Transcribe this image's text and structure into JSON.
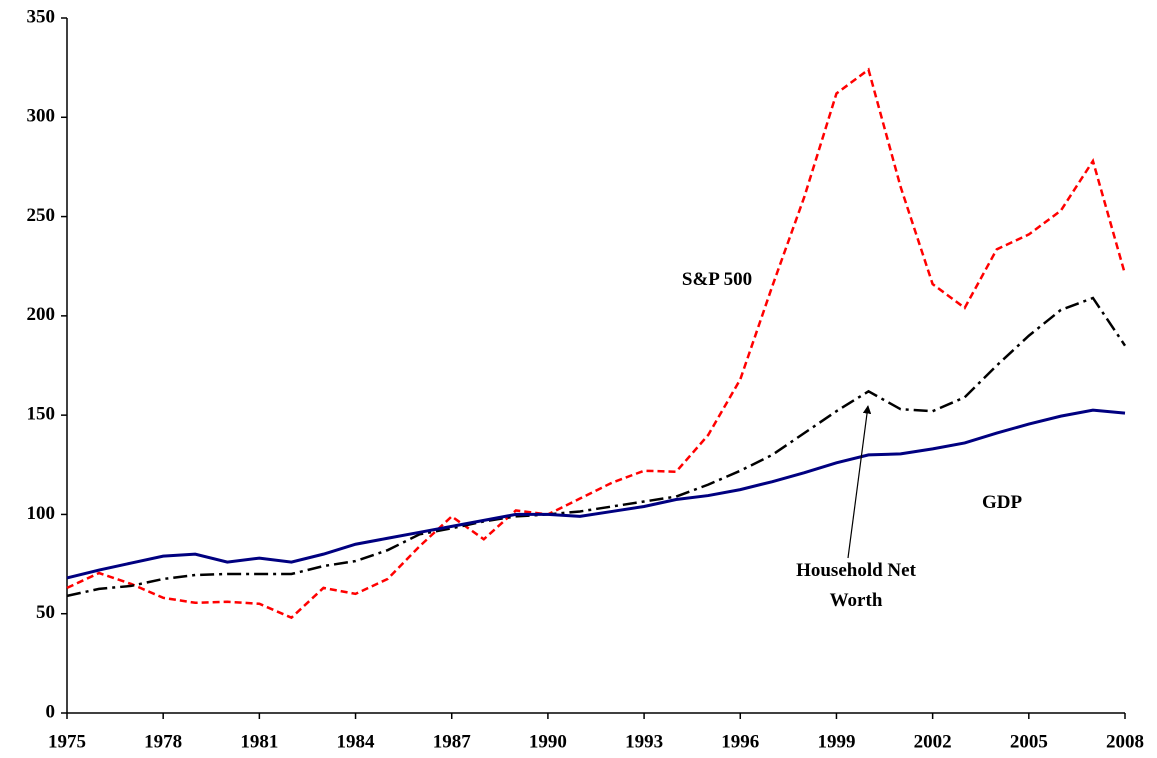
{
  "chart_data": {
    "type": "line",
    "x": [
      1975,
      1976,
      1977,
      1978,
      1979,
      1980,
      1981,
      1982,
      1983,
      1984,
      1985,
      1986,
      1987,
      1988,
      1989,
      1990,
      1991,
      1992,
      1993,
      1994,
      1995,
      1996,
      1997,
      1998,
      1999,
      2000,
      2001,
      2002,
      2003,
      2004,
      2005,
      2006,
      2007,
      2008
    ],
    "series": [
      {
        "name": "S&P 500",
        "color": "#ff0000",
        "style": "dashed",
        "values": [
          63,
          70.5,
          65,
          58,
          55.5,
          56,
          55,
          48,
          63,
          60,
          67.5,
          84,
          99,
          87.5,
          102,
          100,
          108,
          116,
          122,
          121.5,
          140,
          168,
          215,
          260,
          312,
          324,
          265,
          216,
          204,
          233.5,
          241,
          253,
          278,
          221
        ]
      },
      {
        "name": "Household Net Worth",
        "color": "#000000",
        "style": "dashdot",
        "values": [
          59,
          62.5,
          64,
          67.5,
          69.5,
          70,
          70,
          70,
          74,
          76.5,
          82,
          90,
          93,
          96.5,
          99,
          100,
          101.5,
          104,
          106.5,
          109,
          115,
          122,
          130,
          141,
          152,
          162,
          153,
          152,
          159,
          175,
          190,
          203,
          209,
          185
        ]
      },
      {
        "name": "GDP",
        "color": "#000080",
        "style": "solid",
        "values": [
          68,
          72,
          75.5,
          79,
          80,
          76,
          78,
          76,
          80,
          85,
          88,
          91,
          94,
          97,
          100,
          100,
          99,
          101.5,
          104,
          107.5,
          109.5,
          112.5,
          116.5,
          121,
          126,
          130,
          130.5,
          133,
          136,
          141,
          145.5,
          149.5,
          152.5,
          151
        ]
      }
    ],
    "xlim": [
      1975,
      2008
    ],
    "xticks": [
      1975,
      1978,
      1981,
      1984,
      1987,
      1990,
      1993,
      1996,
      1999,
      2002,
      2005,
      2008
    ],
    "ylim": [
      0,
      350
    ],
    "yticks": [
      0,
      50,
      100,
      150,
      200,
      250,
      300,
      350
    ]
  }
}
